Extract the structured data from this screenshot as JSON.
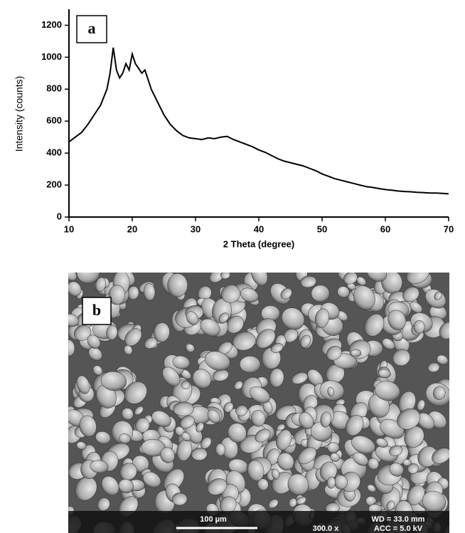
{
  "chart_data": {
    "type": "line",
    "panel_label": "a",
    "x_label": "2 Theta (degree)",
    "y_label": "Intensity (counts)",
    "xlim": [
      10,
      70
    ],
    "ylim": [
      0,
      1300
    ],
    "xticks": [
      10,
      20,
      30,
      40,
      50,
      60,
      70
    ],
    "yticks": [
      0,
      200,
      400,
      600,
      800,
      1000,
      1200
    ],
    "color": "#000000",
    "x": [
      10,
      11,
      12,
      13,
      14,
      15,
      16,
      16.5,
      17,
      17.5,
      18,
      18.5,
      19,
      19.5,
      20,
      20.5,
      21,
      21.5,
      22,
      22.5,
      23,
      24,
      25,
      26,
      27,
      28,
      29,
      30,
      31,
      32,
      33,
      34,
      35,
      36,
      37,
      38,
      39,
      40,
      41,
      42,
      43,
      44,
      45,
      46,
      47,
      48,
      49,
      50,
      51,
      52,
      53,
      54,
      55,
      56,
      57,
      58,
      59,
      60,
      61,
      62,
      63,
      64,
      65,
      66,
      67,
      68,
      69,
      70
    ],
    "values": [
      470,
      500,
      530,
      580,
      640,
      700,
      800,
      900,
      1060,
      920,
      870,
      900,
      960,
      920,
      1020,
      960,
      930,
      900,
      920,
      860,
      800,
      720,
      640,
      580,
      540,
      510,
      495,
      490,
      485,
      495,
      490,
      500,
      505,
      485,
      470,
      455,
      440,
      420,
      405,
      385,
      365,
      350,
      340,
      330,
      320,
      305,
      290,
      270,
      255,
      240,
      230,
      220,
      210,
      200,
      190,
      185,
      178,
      172,
      168,
      163,
      160,
      158,
      155,
      153,
      150,
      150,
      148,
      145
    ],
    "grid": false
  },
  "sem_image": {
    "panel_label": "b",
    "scale_bar": "100 µm",
    "working_distance": "WD = 33.0 mm",
    "magnification": "300.0 x",
    "voltage": "ACC =  5.0 kV"
  }
}
